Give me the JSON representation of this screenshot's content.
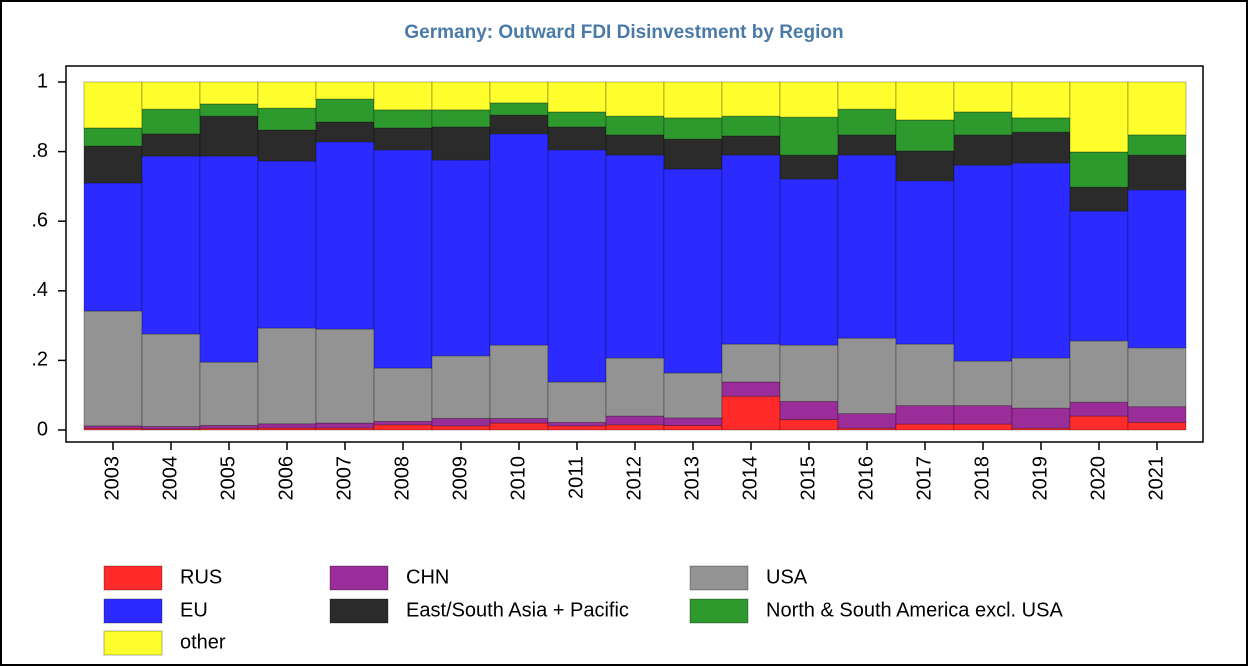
{
  "chart_data": {
    "type": "stacked-bar",
    "title": "Germany: Outward FDI Disinvestment by Region",
    "categories": [
      "2003",
      "2004",
      "2005",
      "2006",
      "2007",
      "2008",
      "2009",
      "2010",
      "2011",
      "2012",
      "2013",
      "2014",
      "2015",
      "2016",
      "2017",
      "2018",
      "2019",
      "2020",
      "2021"
    ],
    "series": [
      {
        "name": "RUS",
        "color": "#ff2a2a",
        "values": [
          0.005,
          0.003,
          0.005,
          0.006,
          0.006,
          0.015,
          0.012,
          0.02,
          0.012,
          0.015,
          0.013,
          0.097,
          0.03,
          0.005,
          0.017,
          0.017,
          0.005,
          0.04,
          0.022
        ]
      },
      {
        "name": "CHN",
        "color": "#9a2d9a",
        "values": [
          0.007,
          0.007,
          0.008,
          0.012,
          0.014,
          0.01,
          0.021,
          0.013,
          0.01,
          0.025,
          0.022,
          0.041,
          0.052,
          0.042,
          0.053,
          0.053,
          0.058,
          0.04,
          0.045
        ]
      },
      {
        "name": "USA",
        "color": "#939393",
        "values": [
          0.33,
          0.266,
          0.182,
          0.275,
          0.27,
          0.153,
          0.18,
          0.211,
          0.116,
          0.167,
          0.129,
          0.109,
          0.162,
          0.217,
          0.177,
          0.128,
          0.144,
          0.176,
          0.169
        ]
      },
      {
        "name": "EU",
        "color": "#2b2bff",
        "values": [
          0.368,
          0.511,
          0.592,
          0.48,
          0.538,
          0.627,
          0.563,
          0.607,
          0.667,
          0.583,
          0.586,
          0.543,
          0.477,
          0.526,
          0.469,
          0.563,
          0.56,
          0.373,
          0.454
        ]
      },
      {
        "name": "East/South Asia + Pacific",
        "color": "#2b2b2b",
        "values": [
          0.106,
          0.064,
          0.115,
          0.089,
          0.057,
          0.063,
          0.095,
          0.054,
          0.066,
          0.058,
          0.086,
          0.055,
          0.069,
          0.058,
          0.086,
          0.087,
          0.089,
          0.069,
          0.1
        ]
      },
      {
        "name": "North & South America excl. USA",
        "color": "#2e9a2e",
        "values": [
          0.052,
          0.071,
          0.035,
          0.063,
          0.066,
          0.052,
          0.049,
          0.035,
          0.043,
          0.054,
          0.061,
          0.057,
          0.109,
          0.074,
          0.089,
          0.066,
          0.041,
          0.101,
          0.058
        ]
      },
      {
        "name": "other",
        "color": "#ffff2e",
        "values": [
          0.132,
          0.078,
          0.063,
          0.075,
          0.049,
          0.08,
          0.08,
          0.06,
          0.086,
          0.098,
          0.103,
          0.098,
          0.101,
          0.078,
          0.109,
          0.086,
          0.103,
          0.201,
          0.152
        ]
      }
    ],
    "ylim": [
      0,
      1
    ],
    "yticks": [
      0,
      {
        "value": 0.2,
        "label": ".2"
      },
      {
        "value": 0.4,
        "label": ".4"
      },
      {
        "value": 0.6,
        "label": ".6"
      },
      {
        "value": 0.8,
        "label": ".8"
      },
      1
    ],
    "grid": false
  }
}
